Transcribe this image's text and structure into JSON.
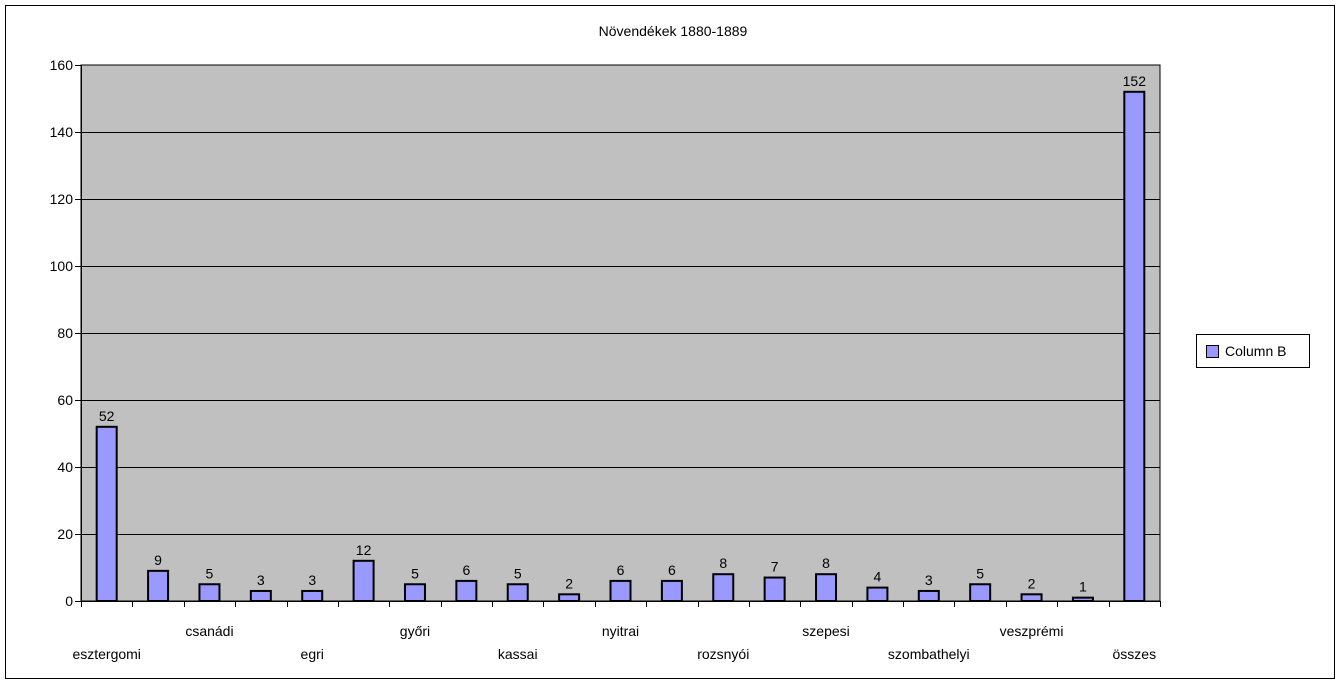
{
  "chart_data": {
    "type": "bar",
    "title": "Növendékek 1880-1889",
    "categories": [
      "esztergomi",
      "",
      "csanádi",
      "",
      "egri",
      "",
      "győri",
      "",
      "kassai",
      "",
      "nyitrai",
      "",
      "rozsnyói",
      "",
      "szepesi",
      "",
      "szombathelyi",
      "",
      "veszprémi",
      "",
      "összes"
    ],
    "series": [
      {
        "name": "Column B",
        "values": [
          52,
          9,
          5,
          3,
          3,
          12,
          5,
          6,
          5,
          2,
          6,
          6,
          8,
          7,
          8,
          4,
          3,
          5,
          2,
          1,
          152
        ]
      }
    ],
    "ylim": [
      0,
      160
    ],
    "yticks": [
      0,
      20,
      40,
      60,
      80,
      100,
      120,
      140,
      160
    ],
    "grid": true,
    "legend": "right",
    "colors": {
      "bar": "#9999ff",
      "plot_bg": "#c0c0c0",
      "grid": "#000000"
    }
  }
}
